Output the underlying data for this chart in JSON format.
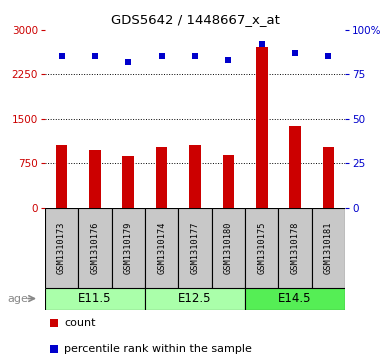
{
  "title": "GDS5642 / 1448667_x_at",
  "samples": [
    "GSM1310173",
    "GSM1310176",
    "GSM1310179",
    "GSM1310174",
    "GSM1310177",
    "GSM1310180",
    "GSM1310175",
    "GSM1310178",
    "GSM1310181"
  ],
  "counts": [
    1050,
    970,
    870,
    1020,
    1050,
    890,
    2700,
    1380,
    1020
  ],
  "percentile_ranks": [
    85,
    85,
    82,
    85,
    85,
    83,
    92,
    87,
    85
  ],
  "age_groups": [
    {
      "label": "E11.5",
      "start": 0,
      "end": 3,
      "color": "#AAFFAA"
    },
    {
      "label": "E12.5",
      "start": 3,
      "end": 6,
      "color": "#AAFFAA"
    },
    {
      "label": "E14.5",
      "start": 6,
      "end": 9,
      "color": "#55EE55"
    }
  ],
  "ylim_left": [
    0,
    3000
  ],
  "ylim_right": [
    0,
    100
  ],
  "yticks_left": [
    0,
    750,
    1500,
    2250,
    3000
  ],
  "yticks_right": [
    0,
    25,
    50,
    75,
    100
  ],
  "ytick_labels_left": [
    "0",
    "750",
    "1500",
    "2250",
    "3000"
  ],
  "ytick_labels_right": [
    "0",
    "25",
    "50",
    "75",
    "100%"
  ],
  "bar_color": "#CC0000",
  "dot_color": "#0000CC",
  "bg_color": "#FFFFFF",
  "sample_bg": "#C8C8C8",
  "age_label": "age",
  "legend_count": "count",
  "legend_percentile": "percentile rank within the sample",
  "grid_lines": [
    750,
    1500,
    2250
  ]
}
